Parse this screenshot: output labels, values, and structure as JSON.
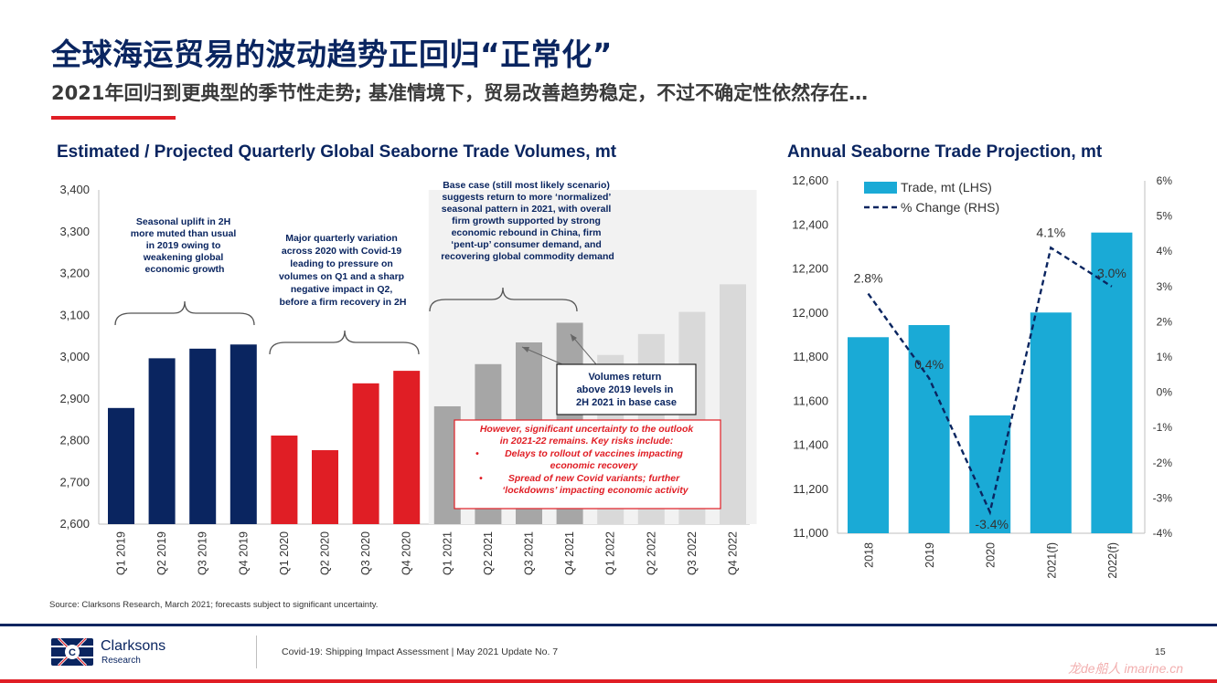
{
  "header": {
    "title": "全球海运贸易的波动趋势正回归“正常化”",
    "subtitle": "2021年回归到更典型的季节性走势; 基准情境下，贸易改善趋势稳定，不过不确定性依然存在…"
  },
  "colors": {
    "navy": "#0a2560",
    "red": "#e01e25",
    "gray_actual": "#a6a6a6",
    "gray_proj": "#d9d9d9",
    "cyan": "#1aaad6",
    "line": "#0a2560"
  },
  "chart_data": [
    {
      "type": "bar",
      "title": "Estimated / Projected Quarterly Global Seaborne Trade Volumes, mt",
      "categories": [
        "Q1 2019",
        "Q2 2019",
        "Q3 2019",
        "Q4 2019",
        "Q1 2020",
        "Q2 2020",
        "Q3 2020",
        "Q4 2020",
        "Q1 2021",
        "Q2 2021",
        "Q3 2021",
        "Q4 2021",
        "Q1 2022",
        "Q2 2022",
        "Q3 2022",
        "Q4 2022"
      ],
      "values": [
        2878,
        2997,
        3020,
        3030,
        2812,
        2777,
        2937,
        2967,
        2882,
        2983,
        3035,
        3082,
        3005,
        3055,
        3108,
        3174
      ],
      "series_groups": [
        "2019",
        "2019",
        "2019",
        "2019",
        "2020",
        "2020",
        "2020",
        "2020",
        "2021",
        "2021",
        "2021",
        "2021",
        "2022",
        "2022",
        "2022",
        "2022"
      ],
      "ylim": [
        2600,
        3400
      ],
      "yticks": [
        2600,
        2700,
        2800,
        2900,
        3000,
        3100,
        3200,
        3300,
        3400
      ],
      "ytick_labels": [
        "2,600",
        "2,700",
        "2,800",
        "2,900",
        "3,000",
        "3,100",
        "3,200",
        "3,300",
        "3,400"
      ],
      "annotations": {
        "seasonal": [
          "Seasonal uplift in 2H",
          "more muted than usual",
          "in 2019 owing to",
          "weakening global",
          "economic growth"
        ],
        "variation": [
          "Major quarterly variation",
          "across 2020 with Covid-19",
          "leading to pressure on",
          "volumes on Q1 and a sharp",
          "negative impact in Q2,",
          "before a firm recovery in 2H"
        ],
        "basecase": [
          "Base case (still most likely scenario)",
          "suggests return to more ‘normalized’",
          "seasonal pattern in 2021, with overall",
          "firm growth supported by strong",
          "economic rebound in China, firm",
          "‘pent-up’ consumer demand, and",
          "recovering global commodity demand"
        ],
        "volumes": [
          "Volumes return",
          "above 2019 levels in",
          "2H 2021 in base case"
        ],
        "uncertainty": [
          "However, significant uncertainty to the outlook",
          "in 2021-22 remains. Key risks include:",
          "Delays to rollout of vaccines impacting",
          "economic recovery",
          "Spread of new Covid variants; further",
          "‘lockdowns’ impacting economic activity"
        ],
        "bullet": "•"
      }
    },
    {
      "type": "bar+line",
      "title": "Annual Seaborne Trade Projection, mt",
      "categories": [
        "2018",
        "2019",
        "2020",
        "2021(f)",
        "2022(f)"
      ],
      "series": [
        {
          "name": "Trade, mt (LHS)",
          "type": "bar",
          "values": [
            11890,
            11945,
            11535,
            12002,
            12365
          ]
        },
        {
          "name": "% Change (RHS)",
          "type": "line",
          "values": [
            2.8,
            0.4,
            -3.4,
            4.1,
            3.0
          ],
          "data_labels": [
            "2.8%",
            "0.4%",
            "-3.4%",
            "4.1%",
            "3.0%"
          ]
        }
      ],
      "ylim_left": [
        11000,
        12600
      ],
      "yticks_left_labels": [
        "11,000",
        "11,200",
        "11,400",
        "11,600",
        "11,800",
        "12,000",
        "12,200",
        "12,400",
        "12,600"
      ],
      "ylim_right": [
        -4,
        6
      ],
      "yticks_right_labels": [
        "-4%",
        "-3%",
        "-2%",
        "-1%",
        "0%",
        "1%",
        "2%",
        "3%",
        "4%",
        "5%",
        "6%"
      ],
      "legend": "top-left"
    }
  ],
  "footer": {
    "source": "Source: Clarksons Research, March 2021; forecasts subject to significant uncertainty.",
    "publication": "Covid-19: Shipping Impact Assessment | May 2021 Update No. 7",
    "page": "15",
    "logo_name": "Clarksons",
    "logo_sub": "Research",
    "watermark": "龙de船人 imarine.cn"
  }
}
